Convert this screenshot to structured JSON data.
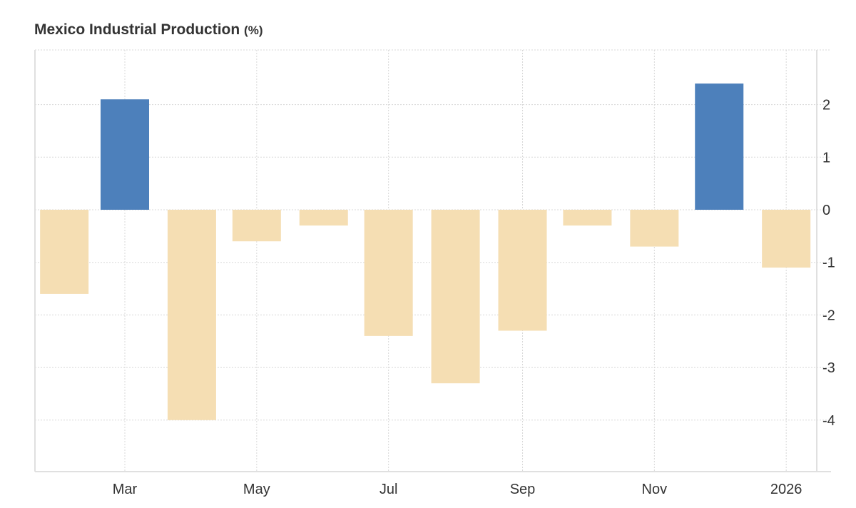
{
  "chart_data": {
    "type": "bar",
    "title": "Mexico Industrial Production",
    "unit": "(%)",
    "categories": [
      "2025-02",
      "2025-03",
      "2025-04",
      "2025-05",
      "2025-06",
      "2025-07",
      "2025-08",
      "2025-09",
      "2025-10",
      "2025-11",
      "2025-12",
      "2026-01"
    ],
    "values": [
      -1.6,
      2.1,
      -4.0,
      -0.6,
      -0.3,
      -2.4,
      -3.3,
      -2.3,
      -0.3,
      -0.7,
      2.4,
      -1.1
    ],
    "x_tick_labels": [
      {
        "date": "2025-03-01",
        "label": "Mar"
      },
      {
        "date": "2025-05-01",
        "label": "May"
      },
      {
        "date": "2025-07-01",
        "label": "Jul"
      },
      {
        "date": "2025-09-01",
        "label": "Sep"
      },
      {
        "date": "2025-11-01",
        "label": "Nov"
      },
      {
        "date": "2026-01-01",
        "label": "2026"
      }
    ],
    "y_ticks": [
      2,
      1,
      0,
      -1,
      -2,
      -3,
      -4
    ],
    "ylim": [
      -5,
      3
    ],
    "y_axis_side": "right",
    "grid": true,
    "colors": {
      "positive": "#4d80bb",
      "negative": "#f5deb3",
      "grid": "#d8d8d8",
      "axis": "#e0e0e0"
    }
  }
}
